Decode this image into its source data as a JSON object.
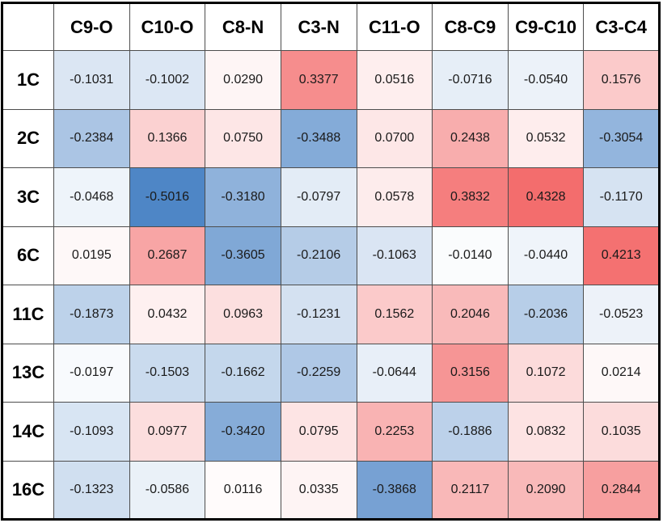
{
  "chart_data": {
    "type": "heatmap",
    "columns": [
      "C9-O",
      "C10-O",
      "C8-N",
      "C3-N",
      "C11-O",
      "C8-C9",
      "C9-C10",
      "C3-C4"
    ],
    "rows": [
      "1C",
      "2C",
      "3C",
      "6C",
      "11C",
      "13C",
      "14C",
      "16C"
    ],
    "values": [
      [
        -0.1031,
        -0.1002,
        0.029,
        0.3377,
        0.0516,
        -0.0716,
        -0.054,
        0.1576
      ],
      [
        -0.2384,
        0.1366,
        0.075,
        -0.3488,
        0.07,
        0.2438,
        0.0532,
        -0.3054
      ],
      [
        -0.0468,
        -0.5016,
        -0.318,
        -0.0797,
        0.0578,
        0.3832,
        0.4328,
        -0.117
      ],
      [
        0.0195,
        0.2687,
        -0.3605,
        -0.2106,
        -0.1063,
        -0.014,
        -0.044,
        0.4213
      ],
      [
        -0.1873,
        0.0432,
        0.0963,
        -0.1231,
        0.1562,
        0.2046,
        -0.2036,
        -0.0523
      ],
      [
        -0.0197,
        -0.1503,
        -0.1662,
        -0.2259,
        -0.0644,
        0.3156,
        0.1072,
        0.0214
      ],
      [
        -0.1093,
        0.0977,
        -0.342,
        0.0795,
        0.2253,
        -0.1886,
        0.0832,
        0.1035
      ],
      [
        -0.1323,
        -0.0586,
        0.0116,
        0.0335,
        -0.3868,
        0.2117,
        0.209,
        0.2844
      ]
    ],
    "cells_display": [
      [
        "-0.1031",
        "-0.1002",
        "0.0290",
        "0.3377",
        "0.0516",
        "-0.0716",
        "-0.0540",
        "0.1576"
      ],
      [
        "-0.2384",
        "0.1366",
        "0.0750",
        "-0.3488",
        "0.0700",
        "0.2438",
        "0.0532",
        "-0.3054"
      ],
      [
        "-0.0468",
        "-0.5016",
        "-0.3180",
        "-0.0797",
        "0.0578",
        "0.3832",
        "0.4328",
        "-0.1170"
      ],
      [
        "0.0195",
        "0.2687",
        "-0.3605",
        "-0.2106",
        "-0.1063",
        "-0.0140",
        "-0.0440",
        "0.4213"
      ],
      [
        "-0.1873",
        "0.0432",
        "0.0963",
        "-0.1231",
        "0.1562",
        "0.2046",
        "-0.2036",
        "-0.0523"
      ],
      [
        "-0.0197",
        "-0.1503",
        "-0.1662",
        "-0.2259",
        "-0.0644",
        "0.3156",
        "0.1072",
        "0.0214"
      ],
      [
        "-0.1093",
        "0.0977",
        "-0.3420",
        "0.0795",
        "0.2253",
        "-0.1886",
        "0.0832",
        "0.1035"
      ],
      [
        "-0.1323",
        "-0.0586",
        "0.0116",
        "0.0335",
        "-0.3868",
        "0.2117",
        "0.2090",
        "0.2844"
      ]
    ],
    "corner_label": "",
    "title": "",
    "legend": "none",
    "grid": true,
    "colormap": {
      "style": "diverging-blue-white-red",
      "negative_color": "#3d7ac1",
      "zero_color": "#ffffff",
      "positive_color": "#f04646",
      "abs_scale": 0.55
    },
    "value_format_decimals": 4
  }
}
